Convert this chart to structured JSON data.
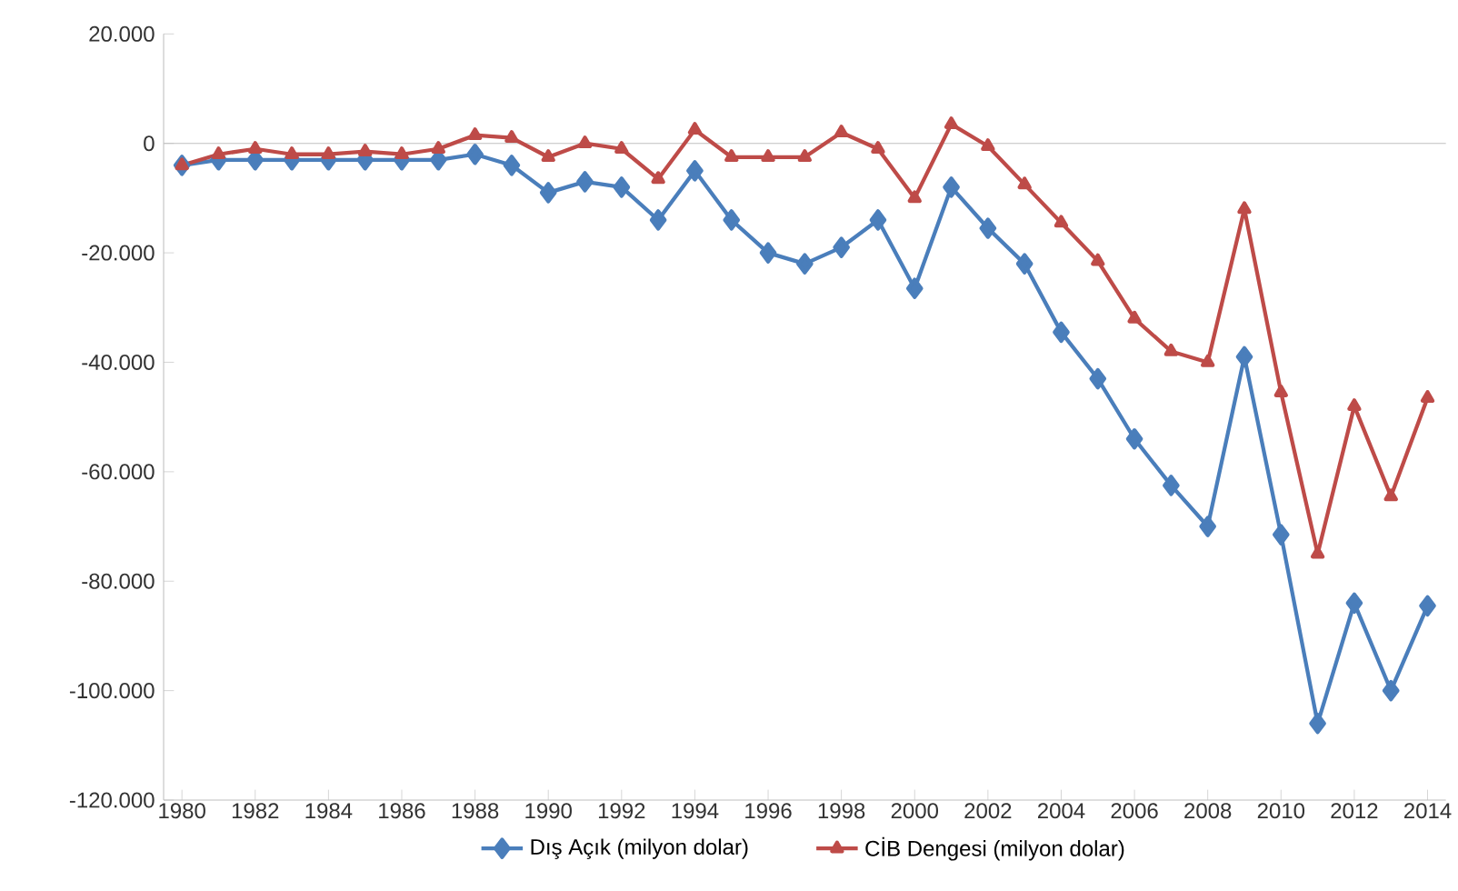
{
  "chart_data": {
    "type": "line",
    "x": [
      1980,
      1981,
      1982,
      1983,
      1984,
      1985,
      1986,
      1987,
      1988,
      1989,
      1990,
      1991,
      1992,
      1993,
      1994,
      1995,
      1996,
      1997,
      1998,
      1999,
      2000,
      2001,
      2002,
      2003,
      2004,
      2005,
      2006,
      2007,
      2008,
      2009,
      2010,
      2011,
      2012,
      2013,
      2014
    ],
    "series": [
      {
        "name": "Dış Açık (milyon dolar)",
        "color": "#4a7ebb",
        "marker": "diamond",
        "values": [
          -4000,
          -3000,
          -3000,
          -3000,
          -3000,
          -3000,
          -3000,
          -3000,
          -2000,
          -4000,
          -9000,
          -7000,
          -8000,
          -14000,
          -5000,
          -14000,
          -20000,
          -22000,
          -19000,
          -14000,
          -26500,
          -8000,
          -15500,
          -22000,
          -34500,
          -43000,
          -54000,
          -62500,
          -70000,
          -39000,
          -71500,
          -106000,
          -84000,
          -100000,
          -84500
        ]
      },
      {
        "name": "CİB Dengesi (milyon dolar)",
        "color": "#be4b48",
        "marker": "triangle",
        "values": [
          -4000,
          -2000,
          -1000,
          -2000,
          -2000,
          -1500,
          -2000,
          -1000,
          1500,
          1000,
          -2500,
          0,
          -1000,
          -6500,
          2500,
          -2500,
          -2500,
          -2500,
          2000,
          -1000,
          -10000,
          3500,
          -500,
          -7500,
          -14500,
          -21500,
          -32000,
          -38000,
          -40000,
          -12000,
          -45500,
          -75000,
          -48000,
          -64500,
          -46500
        ]
      }
    ],
    "xlim": [
      1979.5,
      2014.5
    ],
    "xticks": [
      1980,
      1982,
      1984,
      1986,
      1988,
      1990,
      1992,
      1994,
      1996,
      1998,
      2000,
      2002,
      2004,
      2006,
      2008,
      2010,
      2012,
      2014
    ],
    "ylim": [
      -120000,
      20000
    ],
    "yticks": [
      {
        "value": -120000,
        "label": "-120.000"
      },
      {
        "value": -100000,
        "label": "-100.000"
      },
      {
        "value": -80000,
        "label": "-80.000"
      },
      {
        "value": -60000,
        "label": "-60.000"
      },
      {
        "value": -40000,
        "label": "-40.000"
      },
      {
        "value": -20000,
        "label": "-20.000"
      },
      {
        "value": 0,
        "label": "0"
      },
      {
        "value": 20000,
        "label": "20.000"
      }
    ],
    "legend": "bottom",
    "line_style": "solid"
  }
}
